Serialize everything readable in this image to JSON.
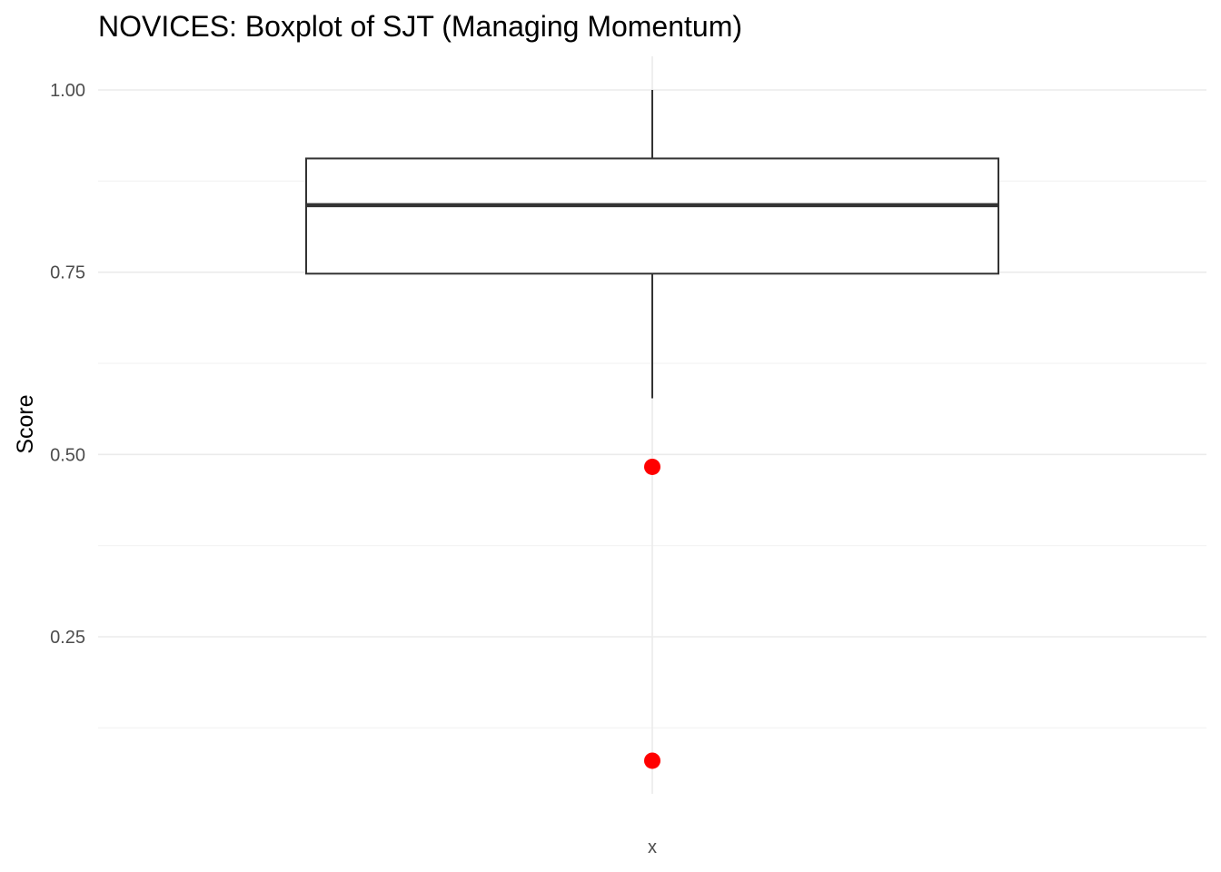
{
  "chart_data": {
    "type": "boxplot",
    "title": "NOVICES: Boxplot of SJT (Managing Momentum)",
    "xlabel": "x",
    "ylabel": "Score",
    "ylim": [
      0.045,
      1.045
    ],
    "y_ticks": [
      {
        "value": 0.25,
        "label": "0.25"
      },
      {
        "value": 0.5,
        "label": "0.50"
      },
      {
        "value": 0.75,
        "label": "0.75"
      },
      {
        "value": 1.0,
        "label": "1.00"
      }
    ],
    "y_minor_ticks": [
      0.125,
      0.375,
      0.625,
      0.875
    ],
    "grid": true,
    "legend": "none",
    "box": {
      "whisker_low": 0.577,
      "q1": 0.748,
      "median": 0.842,
      "q3": 0.906,
      "whisker_high": 1.0
    },
    "outliers": [
      0.483,
      0.08
    ],
    "colors": {
      "outlier": "#ff0000",
      "box_stroke": "#333333",
      "grid": "#ebebeb"
    }
  }
}
